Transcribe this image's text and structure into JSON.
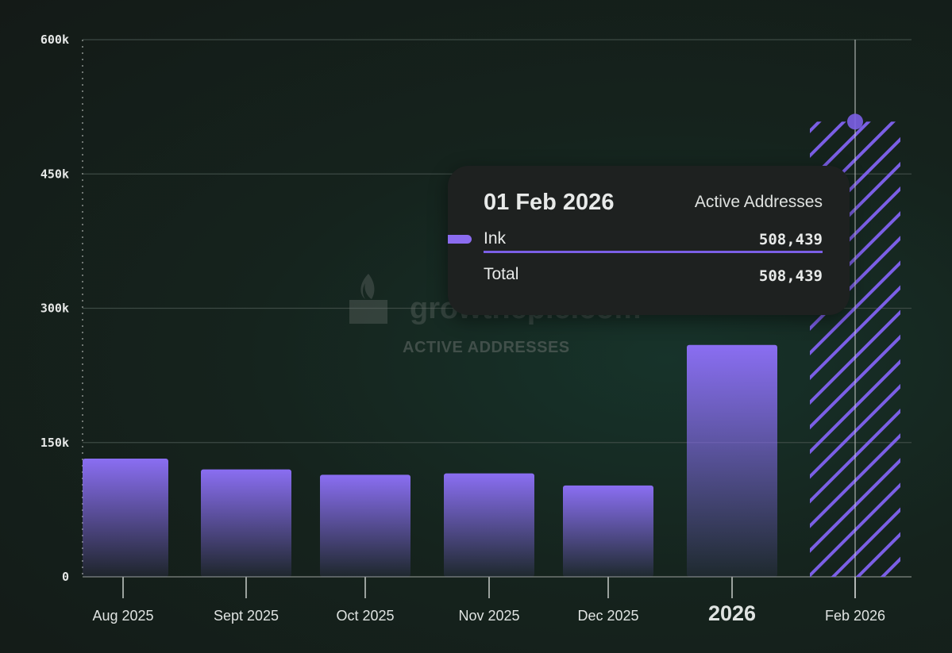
{
  "chart_data": {
    "type": "bar",
    "metric": "Active Addresses",
    "y_ticks": [
      "0",
      "150k",
      "300k",
      "450k",
      "600k"
    ],
    "ylim": [
      0,
      600000
    ],
    "categories": [
      "Aug 2025",
      "Sept 2025",
      "Oct 2025",
      "Nov 2025",
      "Dec 2025",
      "2026",
      "Feb 2026"
    ],
    "series": [
      {
        "name": "Ink",
        "color": "#8b6cf0",
        "values": [
          132000,
          120000,
          114000,
          115500,
          102000,
          259000,
          508439
        ]
      }
    ],
    "highlight_label": "2026",
    "partial_period": "Feb 2026",
    "grid": true
  },
  "watermark": {
    "brand": "growthepie.com",
    "metric": "ACTIVE ADDRESSES"
  },
  "tooltip": {
    "date": "01 Feb 2026",
    "metric": "Active Addresses",
    "series_name": "Ink",
    "series_value": "508,439",
    "total_label": "Total",
    "total_value": "508,439"
  }
}
